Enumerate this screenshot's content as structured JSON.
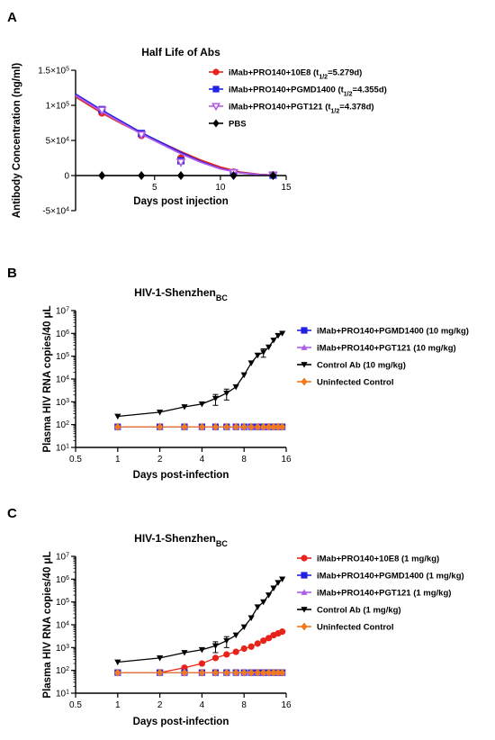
{
  "chart_data": [
    {
      "panel": "A",
      "type": "line",
      "title": "Half Life of Abs",
      "xlabel": "Days post injection",
      "ylabel": "Antibody Concentration (ng/ml)",
      "xlim": [
        -1,
        15
      ],
      "ylim": [
        -50000,
        150000
      ],
      "xticks": [
        5,
        10,
        15
      ],
      "yticks": [
        -50000,
        0,
        50000,
        100000,
        150000
      ],
      "ytick_labels": [
        [
          "-5×10",
          "4"
        ],
        [
          "0",
          ""
        ],
        [
          "5×10",
          "4"
        ],
        [
          "1×10",
          "5"
        ],
        [
          "1.5×10",
          "5"
        ]
      ],
      "legend": "top-right",
      "series": [
        {
          "label": "iMab+PRO140+10E8 (t",
          "label_sub": "1/2",
          "label_tail": "=5.279d)",
          "color": "#e8231c",
          "marker": "circle",
          "x": [
            1,
            4,
            7,
            11,
            14
          ],
          "y": [
            89000,
            57000,
            25000,
            5000,
            1000
          ],
          "fit": [
            [
              -1,
              112000
            ],
            [
              1,
              89000
            ],
            [
              2.5,
              74000
            ],
            [
              4,
              60000
            ],
            [
              5.5,
              47000
            ],
            [
              7,
              34000
            ],
            [
              8.5,
              22000
            ],
            [
              10,
              12000
            ],
            [
              11.5,
              5000
            ],
            [
              13,
              1500
            ],
            [
              14,
              800
            ]
          ]
        },
        {
          "label": "iMab+PRO140+PGMD1400 (t",
          "label_sub": "1/2",
          "label_tail": "=4.355d)",
          "color": "#2222e6",
          "marker": "square",
          "x": [
            1,
            4,
            7,
            11,
            14
          ],
          "y": [
            94000,
            60000,
            21000,
            4000,
            500
          ],
          "fit": [
            [
              -1,
              116000
            ],
            [
              1,
              93000
            ],
            [
              2.5,
              77000
            ],
            [
              4,
              61000
            ],
            [
              5.5,
              47000
            ],
            [
              7,
              33000
            ],
            [
              8.5,
              20000
            ],
            [
              10,
              10000
            ],
            [
              11.5,
              4000
            ],
            [
              13,
              1200
            ],
            [
              14,
              500
            ]
          ]
        },
        {
          "label": "iMab+PRO140+PGT121 (t",
          "label_sub": "1/2",
          "label_tail": "=4.378d)",
          "color": "#b05ce6",
          "marker": "triangle-down-open",
          "x": [
            1,
            4,
            7,
            11,
            14
          ],
          "y": [
            93000,
            58000,
            19000,
            4000,
            500
          ],
          "fit": [
            [
              -1,
              114000
            ],
            [
              1,
              91000
            ],
            [
              2.5,
              75000
            ],
            [
              4,
              59000
            ],
            [
              5.5,
              45000
            ],
            [
              7,
              31000
            ],
            [
              8.5,
              19000
            ],
            [
              10,
              9500
            ],
            [
              11.5,
              3800
            ],
            [
              13,
              1100
            ],
            [
              14,
              500
            ]
          ]
        },
        {
          "label": "PBS",
          "label_sub": "",
          "label_tail": "",
          "color": "#000000",
          "marker": "diamond",
          "x": [
            1,
            4,
            7,
            11,
            14
          ],
          "y": [
            0,
            0,
            0,
            0,
            0
          ]
        }
      ]
    },
    {
      "panel": "B",
      "type": "line",
      "title": "HIV-1-Shenzhen",
      "title_sub": "BC",
      "xlabel": "Days post-infection",
      "ylabel": "Plasma HIV RNA copies/40 μL",
      "xscale": "log2",
      "yscale": "log",
      "xlim": [
        0.5,
        16
      ],
      "ylim": [
        10,
        10000000
      ],
      "xticks": [
        0.5,
        1,
        2,
        4,
        8,
        16
      ],
      "xtick_labels": [
        "0.5",
        "1",
        "2",
        "4",
        "8",
        "16"
      ],
      "yticks": [
        10,
        100,
        1000,
        10000,
        100000,
        1000000,
        10000000
      ],
      "ytick_exp": [
        "1",
        "2",
        "3",
        "4",
        "5",
        "6",
        "7"
      ],
      "legend": "right",
      "series": [
        {
          "label": "iMab+PRO140+PGMD1400 (10 mg/kg)",
          "color": "#2222e6",
          "marker": "square",
          "x": [
            1,
            2,
            3,
            4,
            5,
            6,
            7,
            8,
            9,
            10,
            11,
            12,
            13,
            14,
            15
          ],
          "y": [
            80,
            80,
            80,
            80,
            80,
            80,
            80,
            80,
            80,
            80,
            80,
            80,
            80,
            80,
            80
          ]
        },
        {
          "label": "iMab+PRO140+PGT121 (10 mg/kg)",
          "color": "#b05ce6",
          "marker": "triangle-up",
          "x": [
            1,
            2,
            3,
            4,
            5,
            6,
            7,
            8,
            9,
            10,
            11,
            12,
            13,
            14,
            15
          ],
          "y": [
            80,
            80,
            80,
            80,
            80,
            80,
            80,
            80,
            80,
            80,
            80,
            80,
            80,
            80,
            80
          ]
        },
        {
          "label": "Control Ab (10 mg/kg)",
          "color": "#000000",
          "marker": "triangle-down",
          "x": [
            1,
            2,
            3,
            4,
            5,
            6,
            7,
            8,
            9,
            10,
            11,
            12,
            13,
            14,
            15
          ],
          "y": [
            230,
            350,
            600,
            800,
            1400,
            2400,
            4500,
            15000,
            50000,
            110000,
            150000,
            250000,
            500000,
            800000,
            1000000
          ],
          "err": [
            0,
            0,
            0,
            0,
            700,
            1200,
            0,
            0,
            0,
            0,
            60000,
            0,
            0,
            0,
            0
          ]
        },
        {
          "label": "Uninfected Control",
          "color": "#f07a20",
          "marker": "diamond",
          "x": [
            1,
            2,
            3,
            4,
            5,
            6,
            7,
            8,
            9,
            10,
            11,
            12,
            13,
            14,
            15
          ],
          "y": [
            80,
            80,
            80,
            80,
            80,
            80,
            80,
            80,
            80,
            80,
            80,
            80,
            80,
            80,
            80
          ]
        }
      ]
    },
    {
      "panel": "C",
      "type": "line",
      "title": "HIV-1-Shenzhen",
      "title_sub": "BC",
      "xlabel": "Days post-infection",
      "ylabel": "Plasma HIV RNA copies/40 μL",
      "xscale": "log2",
      "yscale": "log",
      "xlim": [
        0.5,
        16
      ],
      "ylim": [
        10,
        10000000
      ],
      "xticks": [
        0.5,
        1,
        2,
        4,
        8,
        16
      ],
      "xtick_labels": [
        "0.5",
        "1",
        "2",
        "4",
        "8",
        "16"
      ],
      "yticks": [
        10,
        100,
        1000,
        10000,
        100000,
        1000000,
        10000000
      ],
      "ytick_exp": [
        "1",
        "2",
        "3",
        "4",
        "5",
        "6",
        "7"
      ],
      "legend": "right",
      "series": [
        {
          "label": "iMab+PRO140+10E8 (1 mg/kg)",
          "color": "#e8231c",
          "marker": "circle",
          "x": [
            1,
            2,
            3,
            4,
            5,
            6,
            7,
            8,
            9,
            10,
            11,
            12,
            13,
            14,
            15
          ],
          "y": [
            80,
            80,
            130,
            200,
            350,
            500,
            650,
            900,
            1100,
            1500,
            2000,
            2600,
            3500,
            4200,
            5000
          ]
        },
        {
          "label": "iMab+PRO140+PGMD1400 (1 mg/kg)",
          "color": "#2222e6",
          "marker": "square",
          "x": [
            1,
            2,
            3,
            4,
            5,
            6,
            7,
            8,
            9,
            10,
            11,
            12,
            13,
            14,
            15
          ],
          "y": [
            80,
            80,
            80,
            80,
            80,
            80,
            80,
            80,
            80,
            80,
            80,
            80,
            80,
            80,
            80
          ]
        },
        {
          "label": "iMab+PRO140+PGT121 (1 mg/kg)",
          "color": "#b05ce6",
          "marker": "triangle-up",
          "x": [
            1,
            2,
            3,
            4,
            5,
            6,
            7,
            8,
            9,
            10,
            11,
            12,
            13,
            14,
            15
          ],
          "y": [
            80,
            80,
            80,
            80,
            80,
            80,
            80,
            80,
            80,
            80,
            80,
            80,
            80,
            80,
            80
          ]
        },
        {
          "label": "Control Ab (1 mg/kg)",
          "color": "#000000",
          "marker": "triangle-down",
          "x": [
            1,
            2,
            3,
            4,
            5,
            6,
            7,
            8,
            9,
            10,
            11,
            12,
            13,
            14,
            15
          ],
          "y": [
            230,
            350,
            600,
            800,
            1200,
            2000,
            3500,
            8000,
            20000,
            60000,
            100000,
            200000,
            400000,
            700000,
            1000000
          ],
          "err": [
            0,
            0,
            0,
            0,
            600,
            1000,
            0,
            0,
            0,
            0,
            0,
            0,
            0,
            0,
            0
          ]
        },
        {
          "label": "Uninfected Control",
          "color": "#f07a20",
          "marker": "diamond",
          "x": [
            1,
            2,
            3,
            4,
            5,
            6,
            7,
            8,
            9,
            10,
            11,
            12,
            13,
            14,
            15
          ],
          "y": [
            80,
            80,
            80,
            80,
            80,
            80,
            80,
            80,
            80,
            80,
            80,
            80,
            80,
            80,
            80
          ]
        }
      ]
    }
  ]
}
